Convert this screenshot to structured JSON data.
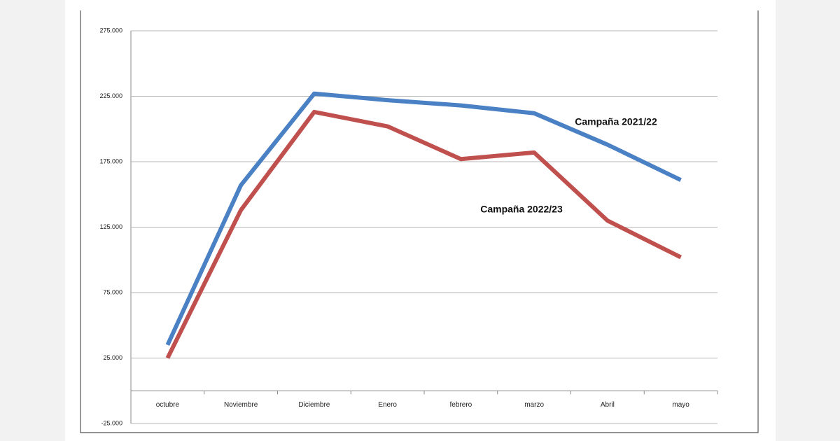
{
  "chart_data": {
    "type": "line",
    "categories": [
      "octubre",
      "Noviembre",
      "Diciembre",
      "Enero",
      "febrero",
      "marzo",
      "Abril",
      "mayo"
    ],
    "series": [
      {
        "name": "Campaña 2021/22",
        "color": "#4a80c4",
        "values": [
          35000,
          157000,
          227000,
          222000,
          218000,
          212000,
          188000,
          161000
        ]
      },
      {
        "name": "Campaña 2022/23",
        "color": "#c0504d",
        "values": [
          25000,
          138000,
          213000,
          202000,
          177000,
          182000,
          130000,
          102000
        ]
      }
    ],
    "ylim": [
      -25000,
      275000
    ],
    "yticks": [
      {
        "value": -25000,
        "label": "-25.000"
      },
      {
        "value": 25000,
        "label": "25.000"
      },
      {
        "value": 75000,
        "label": "75.000"
      },
      {
        "value": 125000,
        "label": "125.000"
      },
      {
        "value": 175000,
        "label": "175.000"
      },
      {
        "value": 225000,
        "label": "225.000"
      },
      {
        "value": 275000,
        "label": "275.000"
      }
    ],
    "grid": true
  }
}
